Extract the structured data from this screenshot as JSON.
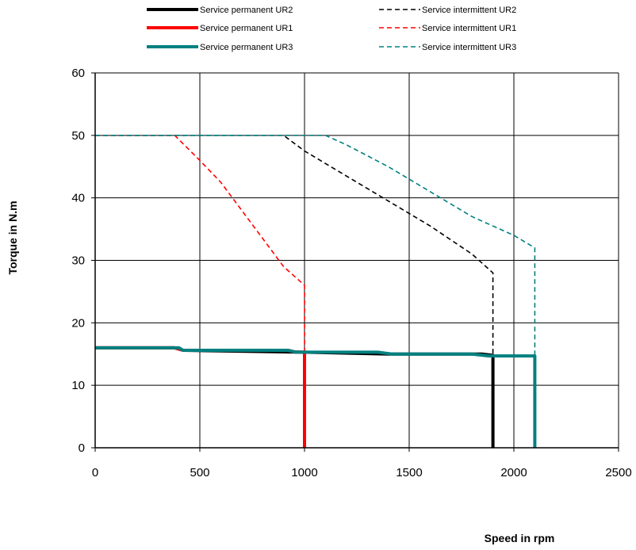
{
  "chart_data": {
    "type": "line",
    "xlabel": "Speed in rpm",
    "ylabel": "Torque in N.m",
    "xlim": [
      0,
      2500
    ],
    "ylim": [
      0,
      60
    ],
    "x_ticks": [
      0,
      500,
      1000,
      1500,
      2000,
      2500
    ],
    "y_ticks": [
      0,
      10,
      20,
      30,
      40,
      50,
      60
    ],
    "grid": true,
    "legend_position": "top",
    "series": [
      {
        "name": "Service permanent UR2",
        "color": "#000000",
        "style": "solid",
        "x": [
          0,
          380,
          420,
          1000,
          1400,
          1850,
          1900,
          1900
        ],
        "y": [
          16,
          16,
          15.6,
          15.3,
          15,
          15,
          14.8,
          0
        ]
      },
      {
        "name": "Service permanent UR1",
        "color": "#ff0000",
        "style": "solid",
        "x": [
          0,
          380,
          420,
          920,
          960,
          1000,
          1000
        ],
        "y": [
          16,
          16,
          15.6,
          15.6,
          15.3,
          15.3,
          0
        ]
      },
      {
        "name": "Service permanent UR3",
        "color": "#008080",
        "style": "solid",
        "x": [
          0,
          400,
          420,
          920,
          960,
          1350,
          1420,
          1800,
          1880,
          2100,
          2100
        ],
        "y": [
          16,
          16,
          15.6,
          15.6,
          15.3,
          15.3,
          15,
          15,
          14.7,
          14.7,
          0
        ]
      },
      {
        "name": "Service intermittent UR2",
        "color": "#000000",
        "style": "dashed",
        "x": [
          0,
          900,
          1000,
          1200,
          1400,
          1600,
          1800,
          1900,
          1900
        ],
        "y": [
          50,
          50,
          47.5,
          43.5,
          39.5,
          35.5,
          31,
          28,
          14.8
        ]
      },
      {
        "name": "Service intermittent UR1",
        "color": "#ff0000",
        "style": "dashed",
        "x": [
          0,
          380,
          500,
          600,
          700,
          800,
          900,
          1000,
          1000
        ],
        "y": [
          50,
          50,
          46,
          42.5,
          38,
          33.5,
          29,
          26,
          15.3
        ]
      },
      {
        "name": "Service intermittent UR3",
        "color": "#008080",
        "style": "dashed",
        "x": [
          0,
          1100,
          1200,
          1400,
          1600,
          1800,
          2000,
          2100,
          2100
        ],
        "y": [
          50,
          50,
          48.5,
          45,
          41,
          37,
          34,
          32,
          14.7
        ]
      }
    ]
  }
}
